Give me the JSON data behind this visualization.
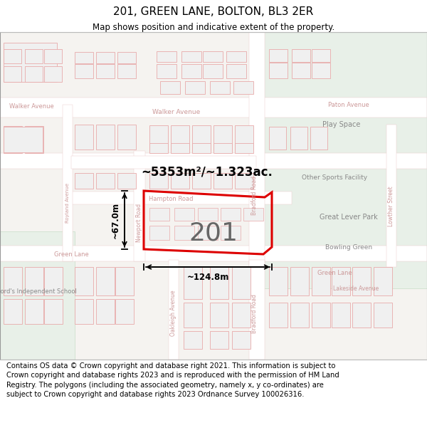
{
  "title": "201, GREEN LANE, BOLTON, BL3 2ER",
  "subtitle": "Map shows position and indicative extent of the property.",
  "footer": "Contains OS data © Crown copyright and database right 2021. This information is subject to Crown copyright and database rights 2023 and is reproduced with the permission of HM Land Registry. The polygons (including the associated geometry, namely x, y co-ordinates) are subject to Crown copyright and database rights 2023 Ordnance Survey 100026316.",
  "map_bg": "#f5f3f0",
  "road_fill": "#ffffff",
  "road_outline": "#e8c8c8",
  "building_outline": "#e8aaaa",
  "building_fill": "#f0f0f0",
  "green_fill": "#e8f0e8",
  "green_outline": "#c8ddc8",
  "property_color": "#dd0000",
  "property_label": "201",
  "area_text": "~5353m²/~1.323ac.",
  "width_text": "~124.8m",
  "height_text": "~67.0m",
  "label_road_color": "#cc9999",
  "label_area_color": "#888888",
  "title_fontsize": 11,
  "subtitle_fontsize": 8.5,
  "footer_fontsize": 7.2
}
